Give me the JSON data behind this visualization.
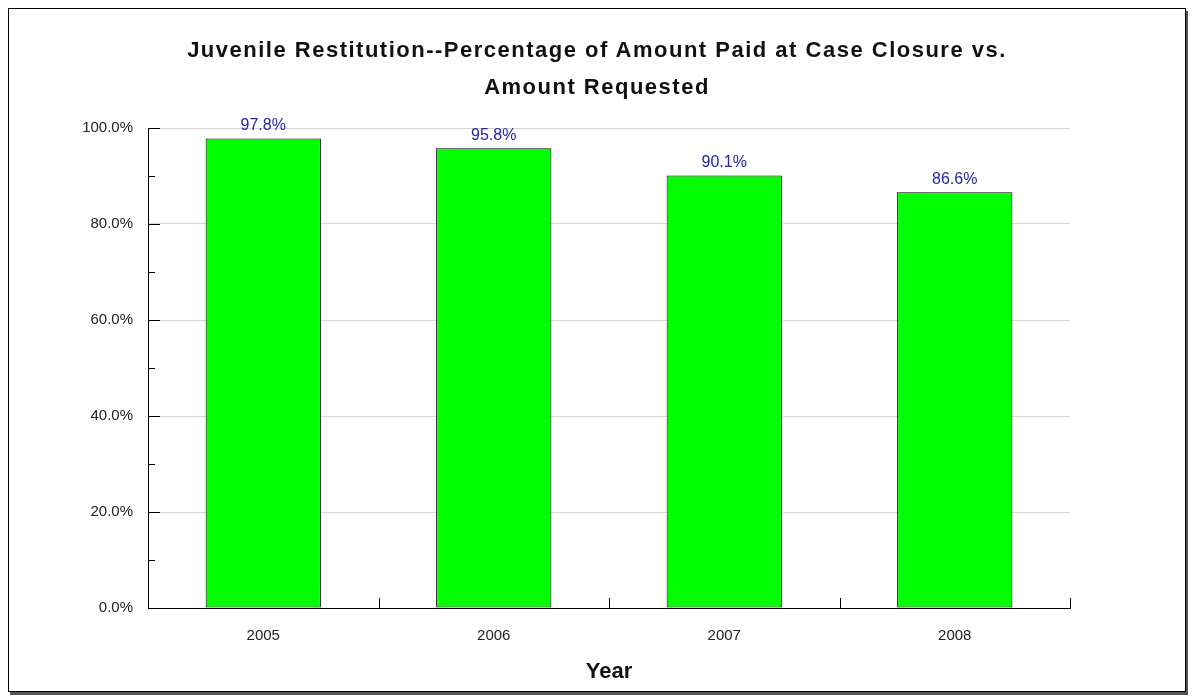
{
  "chart_data": {
    "type": "bar",
    "title": "Juvenile Restitution--Percentage of Amount Paid at Case Closure vs. Amount Requested",
    "xlabel": "Year",
    "categories": [
      "2005",
      "2006",
      "2007",
      "2008"
    ],
    "values": [
      97.8,
      95.8,
      90.1,
      86.6
    ],
    "color": "#00ff00",
    "value_labels": [
      "97.8%",
      "95.8%",
      "90.1%",
      "86.6%"
    ],
    "ylim": [
      0,
      100
    ],
    "yticks": [
      {
        "value": 0,
        "label": "0.0%"
      },
      {
        "value": 10,
        "label": null
      },
      {
        "value": 20,
        "label": "20.0%"
      },
      {
        "value": 30,
        "label": null
      },
      {
        "value": 40,
        "label": "40.0%"
      },
      {
        "value": 50,
        "label": null
      },
      {
        "value": 60,
        "label": "60.0%"
      },
      {
        "value": 70,
        "label": null
      },
      {
        "value": 80,
        "label": "80.0%"
      },
      {
        "value": 90,
        "label": null
      },
      {
        "value": 100,
        "label": "100.0%"
      }
    ],
    "grid": "y"
  }
}
